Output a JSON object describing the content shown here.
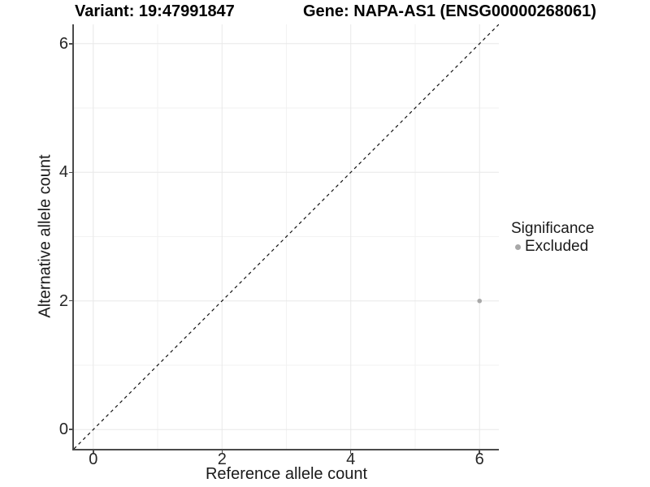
{
  "chart_data": {
    "type": "scatter",
    "title_left": "Variant: 19:47991847",
    "title_right": "Gene: NAPA-AS1 (ENSG00000268061)",
    "xlabel": "Reference allele count",
    "ylabel": "Alternative allele count",
    "xlim": [
      -0.3,
      6.3
    ],
    "ylim": [
      -0.3,
      6.3
    ],
    "ticks": [
      0,
      2,
      4,
      6
    ],
    "tick_labels": [
      "0",
      "2",
      "4",
      "6"
    ],
    "minor_gridlines": [
      1,
      3,
      5
    ],
    "grid": true,
    "identity_line": {
      "style": "dashed",
      "from": -0.3,
      "to": 6.3
    },
    "series": [
      {
        "name": "Excluded",
        "points": [
          {
            "x": 6,
            "y": 2
          }
        ]
      }
    ],
    "legend": {
      "title": "Significance",
      "position": "right",
      "entries": [
        {
          "label": "Excluded",
          "color": "#a8a8a8"
        }
      ]
    },
    "colors": {
      "point": "#a8a8a8",
      "grid_major": "#e8e8e8",
      "grid_minor": "#f2f2f2",
      "axis_line": "#4a4a4a",
      "dashed_line": "#111111"
    }
  }
}
